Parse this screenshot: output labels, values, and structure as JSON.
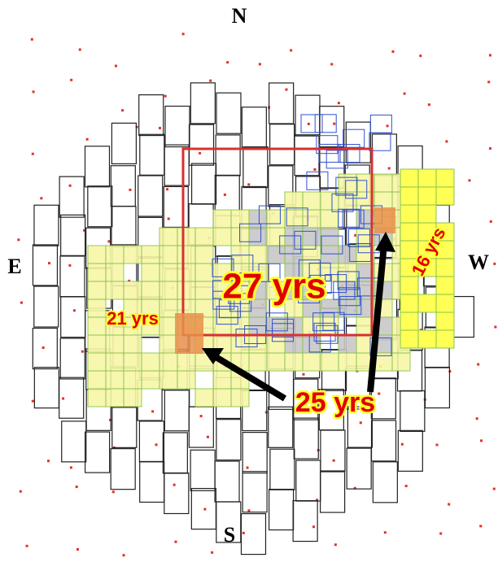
{
  "compass": {
    "north": "N",
    "south": "S",
    "east": "E",
    "west": "W"
  },
  "annotations": {
    "center": "27 yrs",
    "east": "21 yrs",
    "arrows": "25 yrs",
    "west": "16 yrs"
  }
}
